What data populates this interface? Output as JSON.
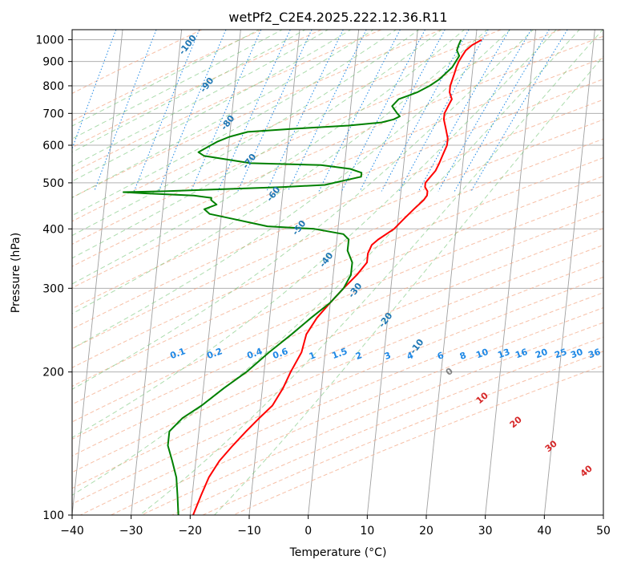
{
  "chart_data": {
    "type": "line",
    "title": "wetPf2_C2E4.2025.222.12.36.R11",
    "xlabel": "Temperature (°C)",
    "ylabel": "Pressure (hPa)",
    "xlim": [
      -40,
      50
    ],
    "ylim": [
      1050,
      100
    ],
    "y_scale": "log",
    "grid": true,
    "skew": "skew-T log-p",
    "x_ticks": [
      -40,
      -30,
      -20,
      -10,
      0,
      10,
      20,
      30,
      40,
      50
    ],
    "y_ticks": [
      100,
      200,
      300,
      400,
      500,
      600,
      700,
      800,
      900,
      1000
    ],
    "series": [
      {
        "color": "#ff0000",
        "points": [
          [
            1000,
            21
          ],
          [
            975,
            19.5
          ],
          [
            950,
            18.5
          ],
          [
            925,
            18
          ],
          [
            900,
            17.5
          ],
          [
            875,
            17.2
          ],
          [
            850,
            17
          ],
          [
            800,
            16.5
          ],
          [
            775,
            16.5
          ],
          [
            750,
            17
          ],
          [
            725,
            16.5
          ],
          [
            700,
            16
          ],
          [
            680,
            16
          ],
          [
            650,
            16.5
          ],
          [
            620,
            17
          ],
          [
            600,
            17
          ],
          [
            575,
            16.5
          ],
          [
            550,
            16
          ],
          [
            530,
            15.5
          ],
          [
            510,
            14.5
          ],
          [
            500,
            14
          ],
          [
            490,
            14
          ],
          [
            480,
            14.5
          ],
          [
            470,
            14.5
          ],
          [
            460,
            14
          ],
          [
            440,
            12.5
          ],
          [
            420,
            11
          ],
          [
            400,
            9.5
          ],
          [
            380,
            7
          ],
          [
            370,
            6
          ],
          [
            355,
            5.5
          ],
          [
            340,
            5.5
          ],
          [
            320,
            4
          ],
          [
            300,
            2
          ],
          [
            280,
            0
          ],
          [
            260,
            -2
          ],
          [
            240,
            -3.5
          ],
          [
            220,
            -4
          ],
          [
            200,
            -5.5
          ],
          [
            185,
            -6.5
          ],
          [
            170,
            -8
          ],
          [
            160,
            -10
          ],
          [
            150,
            -12
          ],
          [
            140,
            -14
          ],
          [
            130,
            -16
          ],
          [
            120,
            -17.5
          ],
          [
            110,
            -18.5
          ],
          [
            100,
            -19.5
          ]
        ]
      },
      {
        "color": "#008000",
        "points": [
          [
            1000,
            17.5
          ],
          [
            975,
            17.2
          ],
          [
            950,
            17
          ],
          [
            925,
            17.5
          ],
          [
            900,
            17
          ],
          [
            875,
            16.5
          ],
          [
            850,
            15.5
          ],
          [
            825,
            14.5
          ],
          [
            800,
            13
          ],
          [
            775,
            11
          ],
          [
            750,
            8
          ],
          [
            725,
            7
          ],
          [
            700,
            8
          ],
          [
            690,
            8.5
          ],
          [
            680,
            7.5
          ],
          [
            670,
            5.5
          ],
          [
            660,
            0
          ],
          [
            650,
            -9
          ],
          [
            640,
            -17
          ],
          [
            625,
            -20
          ],
          [
            610,
            -22
          ],
          [
            600,
            -23
          ],
          [
            580,
            -25
          ],
          [
            570,
            -24
          ],
          [
            550,
            -16
          ],
          [
            545,
            -4
          ],
          [
            535,
            1
          ],
          [
            525,
            3
          ],
          [
            515,
            3
          ],
          [
            505,
            0
          ],
          [
            495,
            -3
          ],
          [
            490,
            -10
          ],
          [
            485,
            -20
          ],
          [
            480,
            -30
          ],
          [
            478,
            -37
          ],
          [
            475,
            -33
          ],
          [
            470,
            -25
          ],
          [
            465,
            -22
          ],
          [
            460,
            -22
          ],
          [
            450,
            -21
          ],
          [
            440,
            -23
          ],
          [
            430,
            -22
          ],
          [
            420,
            -18
          ],
          [
            410,
            -14
          ],
          [
            405,
            -12
          ],
          [
            400,
            -4
          ],
          [
            390,
            1
          ],
          [
            380,
            2
          ],
          [
            370,
            2
          ],
          [
            360,
            2
          ],
          [
            340,
            3
          ],
          [
            320,
            3
          ],
          [
            300,
            2
          ],
          [
            280,
            0
          ],
          [
            260,
            -3
          ],
          [
            240,
            -6
          ],
          [
            220,
            -9.5
          ],
          [
            200,
            -13
          ],
          [
            185,
            -16.5
          ],
          [
            170,
            -20
          ],
          [
            160,
            -23
          ],
          [
            150,
            -25
          ],
          [
            140,
            -25
          ],
          [
            130,
            -24
          ],
          [
            120,
            -23
          ],
          [
            110,
            -22.5
          ],
          [
            100,
            -22
          ]
        ]
      }
    ],
    "dry_adiabat_labels": [
      "-100",
      "-90",
      "-80",
      "-70",
      "-60",
      "-50",
      "-40",
      "-30",
      "-20",
      "-10"
    ],
    "moist_adiabat_labels": [
      "0",
      "10",
      "20",
      "30",
      "40"
    ],
    "mixing_ratio_labels": [
      "0.1",
      "0.2",
      "0.4",
      "0.6",
      "1",
      "1.5",
      "2",
      "3",
      "4",
      "6",
      "8",
      "10",
      "13",
      "16",
      "20",
      "25",
      "30",
      "36"
    ],
    "colors": {
      "temperature": "#ff0000",
      "dewpoint": "#008000",
      "isotherm": "#a0a0a0",
      "dry_adiabat": "#f4a582",
      "moist_adiabat": "#74c476",
      "mixing_ratio": "#1e88e5",
      "label_dry": "#1f77b4",
      "label_moist": "#d62728",
      "label_zero": "#808080"
    }
  }
}
